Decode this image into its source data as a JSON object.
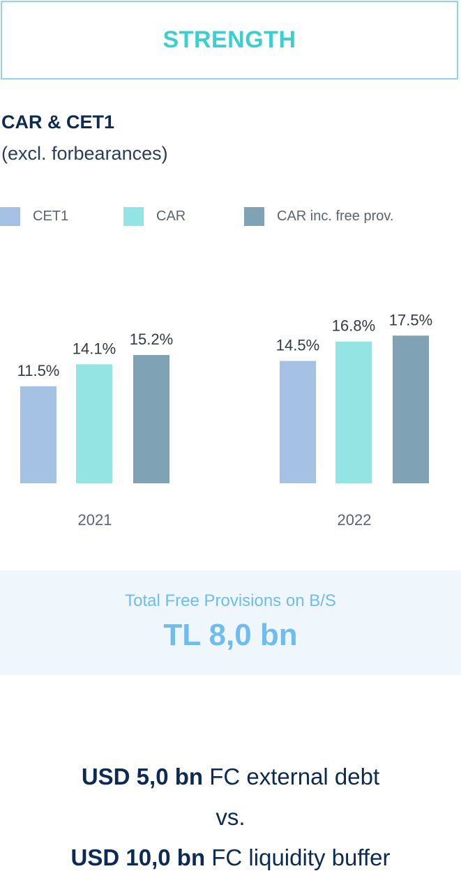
{
  "header": {
    "title": "STRENGTH"
  },
  "chart_data": {
    "type": "bar",
    "title": "CAR & CET1",
    "subtitle": "(excl. forbearances)",
    "categories": [
      "2021",
      "2022"
    ],
    "series": [
      {
        "name": "CET1",
        "values": [
          11.5,
          14.5
        ],
        "labels": [
          "11.5%",
          "14.5%"
        ],
        "color": "#a5c1e3"
      },
      {
        "name": "CAR",
        "values": [
          14.1,
          16.8
        ],
        "labels": [
          "14.1%",
          "16.8%"
        ],
        "color": "#94e4e4"
      },
      {
        "name": "CAR inc. free prov.",
        "values": [
          15.2,
          17.5
        ],
        "labels": [
          "15.2%",
          "17.5%"
        ],
        "color": "#7fa3b5"
      }
    ],
    "legend_position": "top",
    "grid": false
  },
  "provisions": {
    "label": "Total Free Provisions on B/S",
    "value": "TL 8,0 bn"
  },
  "footer": {
    "line1_bold": "USD 5,0 bn",
    "line1_text": " FC external debt",
    "line2_text": "vs.",
    "line3_bold": "USD 10,0 bn",
    "line3_text": " FC liquidity buffer"
  }
}
